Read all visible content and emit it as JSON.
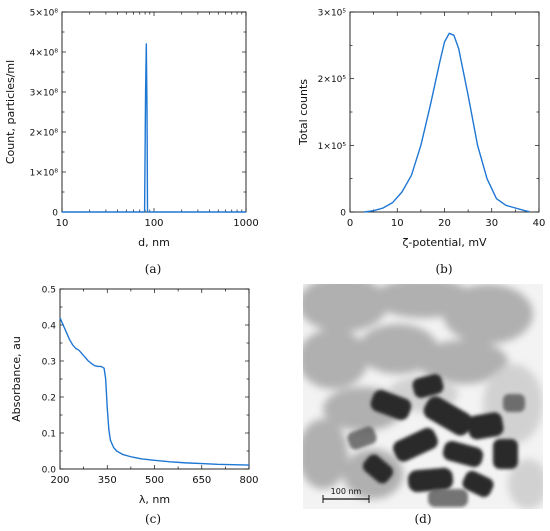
{
  "panels": {
    "a": {
      "caption": "(a)",
      "chart_data": {
        "type": "line",
        "xlabel": "d, nm",
        "ylabel": "Count, particles/ml",
        "xscale": "log",
        "xlim": [
          10,
          1000
        ],
        "ylim": [
          0,
          500000000
        ],
        "xticks": [
          10,
          100,
          1000
        ],
        "xtick_labels": [
          "10",
          "100",
          "1000"
        ],
        "yticks": [
          0,
          100000000,
          200000000,
          300000000,
          400000000,
          500000000
        ],
        "ytick_labels": [
          "0",
          "1×10⁸",
          "2×10⁸",
          "3×10⁸",
          "4×10⁸",
          "5×10⁸"
        ],
        "series": [
          {
            "x": [
              10,
              76,
              79,
              81,
              82.5,
              84,
              85,
              1000
            ],
            "y": [
              0,
              0,
              0,
              300000000,
              420000000,
              250000000,
              0,
              0
            ]
          }
        ]
      }
    },
    "b": {
      "caption": "(b)",
      "chart_data": {
        "type": "line",
        "xlabel": "ζ-potential, mV",
        "ylabel": "Total counts",
        "xlim": [
          0,
          40
        ],
        "ylim": [
          0,
          300000
        ],
        "xticks": [
          0,
          10,
          20,
          30,
          40
        ],
        "xtick_labels": [
          "0",
          "10",
          "20",
          "30",
          "40"
        ],
        "yticks": [
          0,
          100000,
          200000,
          300000
        ],
        "ytick_labels": [
          "0",
          "1×10⁵",
          "2×10⁵",
          "3×10⁵"
        ],
        "series": [
          {
            "x": [
              3,
              5,
              7,
              9,
              11,
              13,
              15,
              17,
              19,
              20,
              21,
              22,
              23,
              25,
              27,
              29,
              31,
              33,
              35,
              37,
              38
            ],
            "y": [
              0,
              2000,
              6000,
              14000,
              30000,
              55000,
              100000,
              160000,
              225000,
              255000,
              268000,
              265000,
              245000,
              175000,
              100000,
              50000,
              20000,
              10000,
              6000,
              2000,
              500
            ]
          }
        ]
      }
    },
    "c": {
      "caption": "(c)",
      "chart_data": {
        "type": "line",
        "xlabel": "λ, nm",
        "ylabel": "Absorbance, au",
        "xlim": [
          200,
          800
        ],
        "ylim": [
          0,
          0.5
        ],
        "xticks": [
          200,
          350,
          500,
          650,
          800
        ],
        "xtick_labels": [
          "200",
          "350",
          "500",
          "650",
          "800"
        ],
        "yticks": [
          0,
          0.1,
          0.2,
          0.3,
          0.4,
          0.5
        ],
        "ytick_labels": [
          "0.0",
          "0.1",
          "0.2",
          "0.3",
          "0.4",
          "0.5"
        ],
        "series": [
          {
            "x": [
              200,
              210,
              220,
              230,
              240,
              250,
              260,
              270,
              280,
              290,
              300,
              310,
              320,
              330,
              340,
              345,
              350,
              355,
              360,
              370,
              380,
              400,
              430,
              460,
              500,
              550,
              600,
              650,
              700,
              750,
              800
            ],
            "y": [
              0.42,
              0.4,
              0.38,
              0.36,
              0.345,
              0.335,
              0.33,
              0.32,
              0.31,
              0.3,
              0.293,
              0.287,
              0.285,
              0.285,
              0.28,
              0.25,
              0.17,
              0.11,
              0.08,
              0.06,
              0.05,
              0.04,
              0.033,
              0.028,
              0.024,
              0.02,
              0.017,
              0.015,
              0.013,
              0.012,
              0.011
            ]
          }
        ]
      }
    },
    "d": {
      "caption": "(d)",
      "scale_label": "100 nm"
    }
  }
}
